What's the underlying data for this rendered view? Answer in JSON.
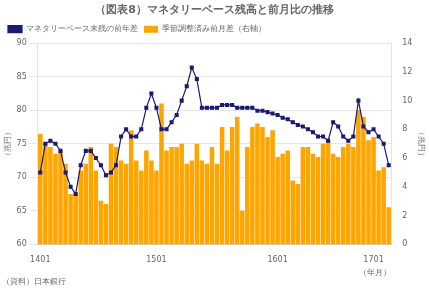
{
  "chart_data": {
    "type": "bar",
    "title": "（図表8）マネタリーベース残高と前月比の推移",
    "xlabel": "（年月）",
    "ylabel": "（兆円）",
    "y2label": "（兆円）",
    "annotations": [
      "（資料）日本銀行"
    ],
    "categories": [
      "1401",
      null,
      null,
      null,
      null,
      null,
      null,
      null,
      null,
      null,
      null,
      null,
      null,
      null,
      null,
      null,
      null,
      null,
      null,
      null,
      null,
      null,
      null,
      "1501",
      null,
      null,
      null,
      null,
      null,
      null,
      null,
      null,
      null,
      null,
      null,
      null,
      null,
      null,
      null,
      null,
      null,
      null,
      null,
      null,
      null,
      null,
      null,
      "1601",
      null,
      null,
      null,
      null,
      null,
      null,
      null,
      null,
      null,
      null,
      null,
      null,
      null,
      null,
      null,
      null,
      null,
      null,
      "1701",
      null,
      null,
      null
    ],
    "series": [
      {
        "name": "季節調整済み前月差（右軸）",
        "type": "bar",
        "color": "#FFA500",
        "values": [
          76.5,
          75.0,
          74.5,
          73.5,
          74.0,
          72.0,
          67.5,
          67.5,
          71.0,
          72.0,
          74.5,
          71.0,
          66.5,
          66.0,
          75.0,
          74.5,
          72.5,
          72.0,
          77.0,
          72.5,
          71.0,
          74.0,
          72.5,
          71.0,
          81.0,
          74.0,
          74.5,
          74.5,
          75.0,
          72.0,
          72.5,
          75.0,
          72.5,
          72.0,
          74.5,
          72.0,
          77.5,
          74.0,
          77.5,
          79.0,
          65.0,
          74.5,
          77.5,
          78.0,
          77.5,
          76.0,
          77.0,
          73.0,
          73.5,
          74.0,
          69.5,
          69.0,
          74.5,
          74.5,
          73.5,
          73.0,
          75.0,
          75.5,
          73.5,
          73.0,
          74.5,
          75.0,
          74.5,
          80.0,
          79.0,
          75.5,
          76.0,
          71.0,
          71.5,
          65.5
        ]
      },
      {
        "name": "マネタリーベース末残の前年差",
        "type": "line",
        "axis": "y2",
        "color": "#1a1a72",
        "marker": "square",
        "values": [
          5.0,
          7.0,
          7.2,
          7.0,
          6.5,
          5.0,
          4.0,
          3.5,
          5.5,
          6.5,
          6.5,
          6.0,
          5.5,
          4.8,
          5.0,
          5.5,
          7.5,
          8.0,
          7.5,
          7.5,
          8.0,
          9.5,
          10.5,
          9.5,
          8.0,
          8.0,
          8.5,
          9.0,
          10.0,
          11.0,
          12.3,
          11.5,
          9.5,
          9.5,
          9.5,
          9.5,
          9.7,
          9.7,
          9.7,
          9.5,
          9.5,
          9.5,
          9.5,
          9.3,
          9.3,
          9.2,
          9.1,
          9.0,
          8.8,
          8.7,
          8.5,
          8.3,
          8.2,
          8.0,
          7.8,
          7.5,
          7.5,
          7.2,
          8.5,
          8.2,
          7.5,
          7.2,
          7.5,
          10.0,
          8.2,
          7.8,
          8.0,
          7.5,
          7.0,
          5.5
        ]
      }
    ],
    "ylim": [
      60,
      90
    ],
    "yticks": [
      60,
      65,
      70,
      75,
      80,
      85,
      90
    ],
    "y2lim": [
      0,
      14
    ],
    "y2ticks": [
      0,
      2,
      4,
      6,
      8,
      10,
      12,
      14
    ],
    "grid": true,
    "legend": "upper left"
  }
}
